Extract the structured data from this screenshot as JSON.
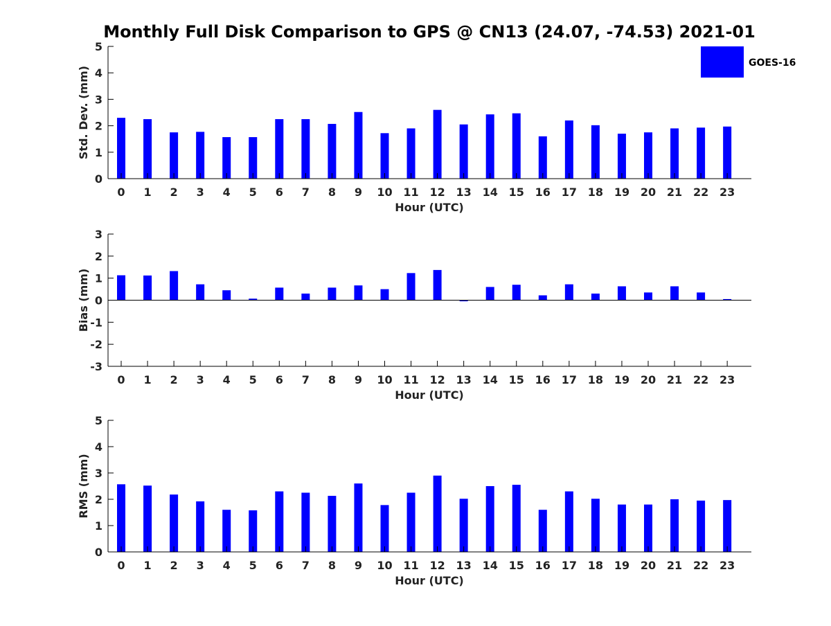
{
  "title": "Monthly Full Disk Comparison to GPS @ CN13 (24.07, -74.53) 2021-01",
  "legend": {
    "label": "GOES-16",
    "color": "#0000ff"
  },
  "chart_data": [
    {
      "type": "bar",
      "xlabel": "Hour (UTC)",
      "ylabel": "Std. Dev. (mm)",
      "ylim": [
        0,
        5
      ],
      "yticks": [
        0,
        1,
        2,
        3,
        4,
        5
      ],
      "categories": [
        "0",
        "1",
        "2",
        "3",
        "4",
        "5",
        "6",
        "7",
        "8",
        "9",
        "10",
        "11",
        "12",
        "13",
        "14",
        "15",
        "16",
        "17",
        "18",
        "19",
        "20",
        "21",
        "22",
        "23"
      ],
      "series": [
        {
          "name": "GOES-16",
          "values": [
            2.3,
            2.25,
            1.75,
            1.77,
            1.57,
            1.57,
            2.25,
            2.25,
            2.07,
            2.52,
            1.72,
            1.9,
            2.6,
            2.05,
            2.43,
            2.47,
            1.6,
            2.2,
            2.02,
            1.7,
            1.75,
            1.9,
            1.93,
            1.97
          ]
        }
      ],
      "legend_position": "top-right"
    },
    {
      "type": "bar",
      "xlabel": "Hour (UTC)",
      "ylabel": "Bias (mm)",
      "ylim": [
        -3,
        3
      ],
      "yticks": [
        -3,
        -2,
        -1,
        0,
        1,
        2,
        3
      ],
      "categories": [
        "0",
        "1",
        "2",
        "3",
        "4",
        "5",
        "6",
        "7",
        "8",
        "9",
        "10",
        "11",
        "12",
        "13",
        "14",
        "15",
        "16",
        "17",
        "18",
        "19",
        "20",
        "21",
        "22",
        "23"
      ],
      "series": [
        {
          "name": "GOES-16",
          "values": [
            1.13,
            1.12,
            1.32,
            0.72,
            0.45,
            0.07,
            0.57,
            0.3,
            0.57,
            0.67,
            0.5,
            1.23,
            1.37,
            -0.05,
            0.6,
            0.7,
            0.22,
            0.72,
            0.3,
            0.63,
            0.35,
            0.63,
            0.35,
            0.05
          ]
        }
      ]
    },
    {
      "type": "bar",
      "xlabel": "Hour (UTC)",
      "ylabel": "RMS (mm)",
      "ylim": [
        0,
        5
      ],
      "yticks": [
        0,
        1,
        2,
        3,
        4,
        5
      ],
      "categories": [
        "0",
        "1",
        "2",
        "3",
        "4",
        "5",
        "6",
        "7",
        "8",
        "9",
        "10",
        "11",
        "12",
        "13",
        "14",
        "15",
        "16",
        "17",
        "18",
        "19",
        "20",
        "21",
        "22",
        "23"
      ],
      "series": [
        {
          "name": "GOES-16",
          "values": [
            2.57,
            2.52,
            2.18,
            1.92,
            1.6,
            1.58,
            2.3,
            2.25,
            2.13,
            2.6,
            1.78,
            2.25,
            2.9,
            2.02,
            2.5,
            2.55,
            1.6,
            2.3,
            2.02,
            1.8,
            1.8,
            2.0,
            1.95,
            1.97
          ]
        }
      ]
    }
  ]
}
